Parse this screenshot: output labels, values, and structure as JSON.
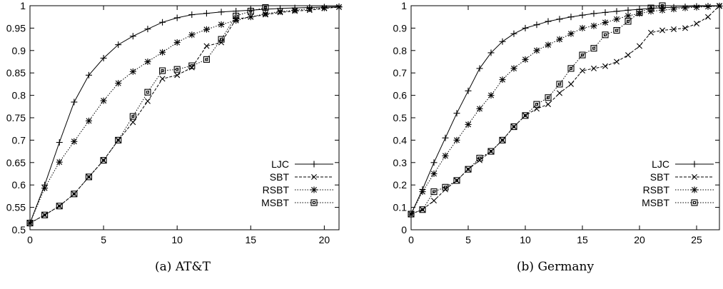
{
  "captions": {
    "a": "(a) AT&T",
    "b": "(b) Germany"
  },
  "chart_data": [
    {
      "type": "line",
      "title": "",
      "caption": "(a) AT&T",
      "xlabel": "",
      "ylabel": "",
      "xlim": [
        0,
        21
      ],
      "ylim": [
        0.5,
        1
      ],
      "xticks": [
        0,
        5,
        10,
        15,
        20
      ],
      "yticks": [
        0.5,
        0.55,
        0.6,
        0.65,
        0.7,
        0.75,
        0.8,
        0.85,
        0.9,
        0.95,
        1
      ],
      "ytick_labels": [
        "0.5",
        "0.55",
        "0.6",
        "0.65",
        "0.7",
        "0.75",
        "0.8",
        "0.85",
        "0.9",
        "0.95",
        "1"
      ],
      "grid": false,
      "legend_position": "bottom-right",
      "series": [
        {
          "name": "LJC",
          "marker": "plus",
          "dash": "solid",
          "x": [
            0,
            1,
            2,
            3,
            4,
            5,
            6,
            7,
            8,
            9,
            10,
            11,
            12,
            13,
            14,
            15,
            16,
            17,
            18,
            19,
            20,
            21
          ],
          "y": [
            0.515,
            0.6,
            0.695,
            0.785,
            0.845,
            0.883,
            0.913,
            0.932,
            0.948,
            0.963,
            0.973,
            0.98,
            0.983,
            0.986,
            0.988,
            0.99,
            0.992,
            0.994,
            0.995,
            0.996,
            0.997,
            0.998
          ]
        },
        {
          "name": "SBT",
          "marker": "x",
          "dash": "dashed",
          "x": [
            0,
            1,
            2,
            3,
            4,
            5,
            6,
            7,
            8,
            9,
            10,
            11,
            12,
            13,
            14,
            15,
            16,
            17,
            18,
            19,
            20,
            21
          ],
          "y": [
            0.515,
            0.533,
            0.553,
            0.58,
            0.618,
            0.655,
            0.7,
            0.74,
            0.787,
            0.837,
            0.845,
            0.862,
            0.91,
            0.918,
            0.97,
            0.975,
            0.98,
            0.985,
            0.988,
            0.99,
            0.994,
            0.997
          ]
        },
        {
          "name": "RSBT",
          "marker": "star",
          "dash": "dotted",
          "x": [
            0,
            1,
            2,
            3,
            4,
            5,
            6,
            7,
            8,
            9,
            10,
            11,
            12,
            13,
            14,
            15,
            16,
            17,
            18,
            19,
            20,
            21
          ],
          "y": [
            0.515,
            0.593,
            0.651,
            0.697,
            0.743,
            0.788,
            0.827,
            0.853,
            0.875,
            0.896,
            0.918,
            0.935,
            0.947,
            0.958,
            0.967,
            0.975,
            0.982,
            0.987,
            0.99,
            0.993,
            0.995,
            0.997
          ]
        },
        {
          "name": "MSBT",
          "marker": "square",
          "dash": "dotted",
          "x": [
            0,
            1,
            2,
            3,
            4,
            5,
            6,
            7,
            8,
            9,
            10,
            11,
            12,
            13,
            14,
            15,
            16
          ],
          "y": [
            0.515,
            0.533,
            0.553,
            0.58,
            0.618,
            0.655,
            0.7,
            0.753,
            0.807,
            0.855,
            0.858,
            0.866,
            0.88,
            0.925,
            0.977,
            0.988,
            0.996
          ]
        }
      ]
    },
    {
      "type": "line",
      "title": "",
      "caption": "(b) Germany",
      "xlabel": "",
      "ylabel": "",
      "xlim": [
        0,
        27
      ],
      "ylim": [
        0,
        1
      ],
      "xticks": [
        0,
        5,
        10,
        15,
        20,
        25
      ],
      "yticks": [
        0,
        0.1,
        0.2,
        0.3,
        0.4,
        0.5,
        0.6,
        0.7,
        0.8,
        0.9,
        1
      ],
      "ytick_labels": [
        "0",
        "0.1",
        "0.2",
        "0.3",
        "0.4",
        "0.5",
        "0.6",
        "0.7",
        "0.8",
        "0.9",
        "1"
      ],
      "grid": false,
      "legend_position": "bottom-right",
      "series": [
        {
          "name": "LJC",
          "marker": "plus",
          "dash": "solid",
          "x": [
            0,
            1,
            2,
            3,
            4,
            5,
            6,
            7,
            8,
            9,
            10,
            11,
            12,
            13,
            14,
            15,
            16,
            17,
            18,
            19,
            20,
            21,
            22,
            23,
            24,
            25,
            26,
            27
          ],
          "y": [
            0.07,
            0.18,
            0.3,
            0.41,
            0.52,
            0.62,
            0.72,
            0.79,
            0.84,
            0.875,
            0.9,
            0.915,
            0.93,
            0.94,
            0.95,
            0.958,
            0.965,
            0.97,
            0.975,
            0.98,
            0.984,
            0.988,
            0.991,
            0.993,
            0.995,
            0.997,
            0.998,
            0.999
          ]
        },
        {
          "name": "SBT",
          "marker": "x",
          "dash": "dashed",
          "x": [
            0,
            1,
            2,
            3,
            4,
            5,
            6,
            7,
            8,
            9,
            10,
            11,
            12,
            13,
            14,
            15,
            16,
            17,
            18,
            19,
            20,
            21,
            22,
            23,
            24,
            25,
            26,
            27
          ],
          "y": [
            0.07,
            0.09,
            0.13,
            0.18,
            0.22,
            0.27,
            0.31,
            0.35,
            0.4,
            0.46,
            0.51,
            0.54,
            0.56,
            0.61,
            0.65,
            0.71,
            0.72,
            0.73,
            0.75,
            0.78,
            0.82,
            0.88,
            0.89,
            0.895,
            0.9,
            0.92,
            0.95,
            1.0
          ]
        },
        {
          "name": "RSBT",
          "marker": "star",
          "dash": "dotted",
          "x": [
            0,
            1,
            2,
            3,
            4,
            5,
            6,
            7,
            8,
            9,
            10,
            11,
            12,
            13,
            14,
            15,
            16,
            17,
            18,
            19,
            20,
            21,
            22,
            23,
            24,
            25,
            26,
            27
          ],
          "y": [
            0.07,
            0.17,
            0.25,
            0.33,
            0.4,
            0.47,
            0.54,
            0.6,
            0.67,
            0.72,
            0.76,
            0.8,
            0.825,
            0.85,
            0.875,
            0.9,
            0.91,
            0.925,
            0.94,
            0.955,
            0.965,
            0.975,
            0.98,
            0.985,
            0.99,
            0.993,
            0.996,
            0.998
          ]
        },
        {
          "name": "MSBT",
          "marker": "square",
          "dash": "dotted",
          "x": [
            0,
            1,
            2,
            3,
            4,
            5,
            6,
            7,
            8,
            9,
            10,
            11,
            12,
            13,
            14,
            15,
            16,
            17,
            18,
            19,
            20,
            21,
            22
          ],
          "y": [
            0.07,
            0.09,
            0.17,
            0.19,
            0.22,
            0.27,
            0.32,
            0.35,
            0.4,
            0.46,
            0.51,
            0.56,
            0.59,
            0.65,
            0.72,
            0.78,
            0.81,
            0.87,
            0.89,
            0.93,
            0.97,
            0.99,
            1.0
          ]
        }
      ]
    }
  ]
}
